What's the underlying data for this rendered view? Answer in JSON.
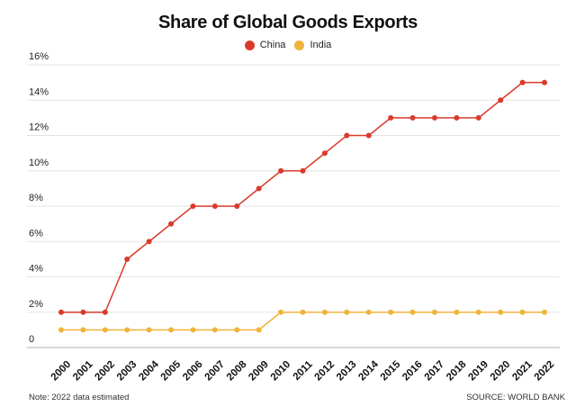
{
  "chart_data": {
    "type": "line",
    "title": "Share of Global Goods Exports",
    "x": [
      2000,
      2001,
      2002,
      2003,
      2004,
      2005,
      2006,
      2007,
      2008,
      2009,
      2010,
      2011,
      2012,
      2013,
      2014,
      2015,
      2016,
      2017,
      2018,
      2019,
      2020,
      2021,
      2022
    ],
    "series": [
      {
        "name": "China",
        "color": "#d93a2b",
        "values": [
          2,
          2,
          2,
          5,
          6,
          7,
          8,
          8,
          8,
          9,
          10,
          10,
          11,
          12,
          12,
          13,
          13,
          13,
          13,
          13,
          14,
          15,
          15
        ]
      },
      {
        "name": "India",
        "color": "#f0b43c",
        "values": [
          1,
          1,
          1,
          1,
          1,
          1,
          1,
          1,
          1,
          1,
          2,
          2,
          2,
          2,
          2,
          2,
          2,
          2,
          2,
          2,
          2,
          2,
          2
        ]
      }
    ],
    "ylim": [
      0,
      16
    ],
    "yticks": [
      0,
      2,
      4,
      6,
      8,
      10,
      12,
      14,
      16
    ],
    "ytick_labels": [
      "0",
      "2%",
      "4%",
      "6%",
      "8%",
      "10%",
      "12%",
      "14%",
      "16%"
    ],
    "grid": true,
    "legend": "top-center",
    "xlabel": "",
    "ylabel": "",
    "note": "Note: 2022 data estimated",
    "source": "SOURCE: WORLD BANK"
  }
}
